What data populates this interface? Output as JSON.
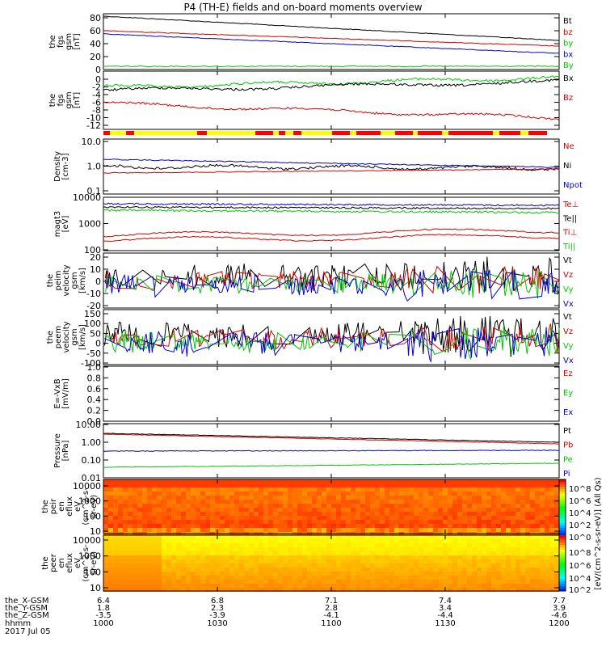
{
  "title": "P4 (TH-E) fields and on-board moments overview",
  "colors": {
    "black": "#000000",
    "red": "#d40000",
    "green": "#00c800",
    "blue": "#0000d8",
    "yellow": "#ffff00",
    "barRed": "#ff0000"
  },
  "time": {
    "start": "1000",
    "end": "1200",
    "start_min": 0,
    "end_min": 120
  },
  "footer": {
    "rows": [
      {
        "label": "the_X-GSM",
        "values": [
          "6.4",
          "6.8",
          "7.1",
          "7.4",
          "7.7"
        ]
      },
      {
        "label": "the_Y-GSM",
        "values": [
          "1.8",
          "2.3",
          "2.8",
          "3.4",
          "3.9"
        ]
      },
      {
        "label": "the_Z-GSM",
        "values": [
          "-3.5",
          "-3.9",
          "-4.1",
          "-4.4",
          "-4.6"
        ]
      },
      {
        "label": "hhmm",
        "values": [
          "1000",
          "1030",
          "1100",
          "1130",
          "1200"
        ]
      }
    ],
    "date": "2017 Jul 05"
  },
  "panels": [
    {
      "id": "fgs-magnitude",
      "ylabel": [
        "the",
        "fgs",
        "gsm",
        "[nT]"
      ],
      "ticks": [
        "80",
        "60",
        "40",
        "20",
        "0"
      ],
      "legend": [
        "Bt",
        "bz",
        "by",
        "bx",
        "By"
      ],
      "legend_colors": [
        "black",
        "red",
        "green",
        "blue",
        "green"
      ]
    },
    {
      "id": "fgs-components",
      "ylabel": [
        "the",
        "fgs",
        "gsm",
        "[nT]"
      ],
      "ticks": [
        "0",
        "-2",
        "-4",
        "-6",
        "-8",
        "-10",
        "-12"
      ],
      "legend": [
        "Bx",
        "Bz"
      ],
      "legend_colors": [
        "black",
        "red"
      ]
    },
    {
      "id": "density",
      "ylabel": [
        "Density",
        "[cm-3]"
      ],
      "ticks": [
        "10.0",
        "1.0",
        "0.1"
      ],
      "legend": [
        "Ne",
        "Ni",
        "Npot"
      ],
      "legend_colors": [
        "red",
        "black",
        "blue"
      ]
    },
    {
      "id": "temperature",
      "ylabel": [
        "magt3",
        "[eV]"
      ],
      "ticks": [
        "10000",
        "1000",
        "100"
      ],
      "legend": [
        "Te⊥",
        "Te||",
        "Ti⊥",
        "Ti||"
      ],
      "legend_colors": [
        "red",
        "black",
        "red",
        "green"
      ]
    },
    {
      "id": "peim-velocity",
      "ylabel": [
        "the",
        "peim",
        "velocity",
        "gsm",
        "[km/s]"
      ],
      "ticks": [
        "20",
        "10",
        "0",
        "-10",
        "-20"
      ],
      "legend": [
        "Vt",
        "Vz",
        "Vy",
        "Vx"
      ],
      "legend_colors": [
        "black",
        "red",
        "green",
        "blue"
      ]
    },
    {
      "id": "peem-velocity",
      "ylabel": [
        "the",
        "peem",
        "velocity",
        "gsm",
        "[km/s]"
      ],
      "ticks": [
        "150",
        "100",
        "50",
        "0",
        "-50",
        "-100"
      ],
      "legend": [
        "Vt",
        "Vz",
        "Vy",
        "Vx"
      ],
      "legend_colors": [
        "black",
        "red",
        "green",
        "blue"
      ]
    },
    {
      "id": "efield",
      "ylabel": [
        "E=-VxB",
        "[mV/m]"
      ],
      "ticks": [
        "1.0",
        "0.8",
        "0.6",
        "0.4",
        "0.2",
        "0.0"
      ],
      "legend": [
        "Ez",
        "Ey",
        "Ex"
      ],
      "legend_colors": [
        "red",
        "green",
        "blue"
      ]
    },
    {
      "id": "pressure",
      "ylabel": [
        "Pressure",
        "[nPa]"
      ],
      "ticks": [
        "10.00",
        "1.00",
        "0.10",
        "0.01"
      ],
      "legend": [
        "Pt",
        "Pb",
        "Pe",
        "Pi"
      ],
      "legend_colors": [
        "black",
        "red",
        "green",
        "blue"
      ]
    },
    {
      "id": "peir-spec",
      "ylabel": [
        "the",
        "peir",
        "en",
        "eflux",
        "eV",
        "(cm^2-s-",
        "sr-eV)"
      ],
      "ticks": [
        "10000",
        "1000",
        "100",
        "10"
      ]
    },
    {
      "id": "peer-spec",
      "ylabel": [
        "the",
        "peer",
        "en",
        "eflux",
        "eV",
        "(cm^2-s-",
        "sr-eV)"
      ],
      "ticks": [
        "10000",
        "1000",
        "100",
        "10"
      ]
    }
  ],
  "colorbar": {
    "label": "[eV/(cm^2-s-sr-eV)] (All Qs)",
    "ticks": [
      "10^8",
      "10^6",
      "10^4",
      "10^2",
      "10^0",
      "10^8",
      "10^6",
      "10^4",
      "10^2"
    ]
  },
  "chart_data": {
    "type": "line",
    "title": "P4 (TH-E) fields and on-board moments overview",
    "x_label": "hhmm",
    "x_range": [
      "1000",
      "1200"
    ],
    "series": [
      {
        "panel": "fgs-magnitude",
        "name": "Bt",
        "x_min": [
          0,
          120
        ],
        "values": [
          80,
          44
        ]
      },
      {
        "panel": "fgs-magnitude",
        "name": "bz",
        "x_min": [
          0,
          120
        ],
        "values": [
          58,
          35
        ]
      },
      {
        "panel": "fgs-magnitude",
        "name": "by",
        "x_min": [
          0,
          120
        ],
        "values": [
          54,
          25
        ]
      },
      {
        "panel": "fgs-magnitude",
        "name": "By",
        "x_min": [
          0,
          120
        ],
        "values": [
          5,
          5
        ]
      },
      {
        "panel": "fgs-components",
        "name": "Bx",
        "x_min": [
          0,
          120
        ],
        "values": [
          -1.5,
          0
        ]
      },
      {
        "panel": "fgs-components",
        "name": "Bz",
        "x_min": [
          0,
          120
        ],
        "values": [
          -6,
          -10
        ]
      },
      {
        "panel": "density",
        "name": "Ni",
        "x_min": [
          0,
          120
        ],
        "values": [
          1.1,
          0.9
        ]
      },
      {
        "panel": "density",
        "name": "Npot",
        "x_min": [
          0,
          120
        ],
        "values": [
          2.0,
          1.0
        ]
      },
      {
        "panel": "density",
        "name": "Ne",
        "x_min": [
          0,
          120
        ],
        "values": [
          0.7,
          0.8
        ]
      },
      {
        "panel": "temperature",
        "name": "Te||",
        "x_min": [
          0,
          120
        ],
        "values": [
          6000,
          5500
        ]
      },
      {
        "panel": "temperature",
        "name": "Ti||",
        "x_min": [
          0,
          120
        ],
        "values": [
          3500,
          3000
        ]
      },
      {
        "panel": "temperature",
        "name": "Ti⊥",
        "x_min": [
          0,
          120
        ],
        "values": [
          400,
          600
        ]
      },
      {
        "panel": "pressure",
        "name": "Pt",
        "x_min": [
          0,
          120
        ],
        "values": [
          2.4,
          0.9
        ]
      },
      {
        "panel": "pressure",
        "name": "Pb",
        "x_min": [
          0,
          120
        ],
        "values": [
          2.2,
          0.8
        ]
      },
      {
        "panel": "pressure",
        "name": "Pi",
        "x_min": [
          0,
          120
        ],
        "values": [
          0.3,
          0.3
        ]
      },
      {
        "panel": "pressure",
        "name": "Pe",
        "x_min": [
          0,
          120
        ],
        "values": [
          0.03,
          0.05
        ]
      }
    ]
  }
}
